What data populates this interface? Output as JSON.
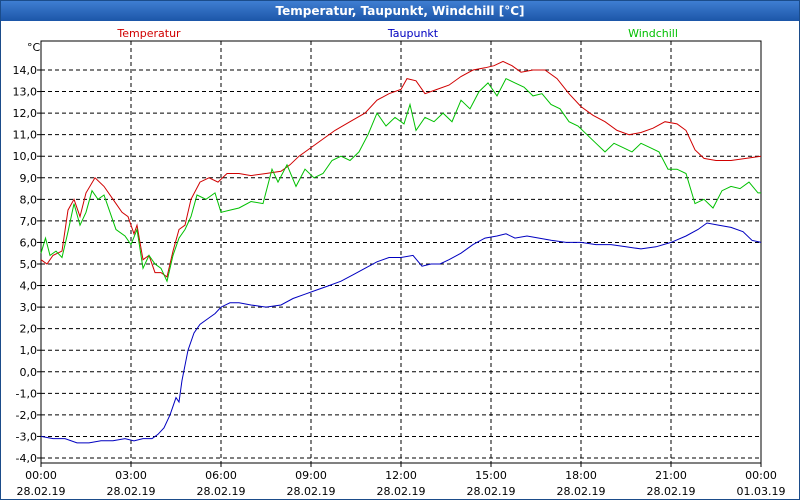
{
  "window": {
    "title": "Temperatur, Taupunkt, Windchill [°C]"
  },
  "chart_data": {
    "type": "line",
    "unit_label": "°C",
    "grid": true,
    "legend_placement": "top",
    "ylim": [
      -4.0,
      15.0
    ],
    "y_ticks": [
      "14,0",
      "13,0",
      "12,0",
      "11,0",
      "10,0",
      "9,0",
      "8,0",
      "7,0",
      "6,0",
      "5,0",
      "4,0",
      "3,0",
      "2,0",
      "1,0",
      "0,0",
      "-1,0",
      "-2,0",
      "-3,0",
      "-4,0"
    ],
    "x_ticks": [
      {
        "time": "00:00",
        "date": "28.02.19"
      },
      {
        "time": "03:00",
        "date": "28.02.19"
      },
      {
        "time": "06:00",
        "date": "28.02.19"
      },
      {
        "time": "09:00",
        "date": "28.02.19"
      },
      {
        "time": "12:00",
        "date": "28.02.19"
      },
      {
        "time": "15:00",
        "date": "28.02.19"
      },
      {
        "time": "18:00",
        "date": "28.02.19"
      },
      {
        "time": "21:00",
        "date": "28.02.19"
      },
      {
        "time": "00:00",
        "date": "01.03.19"
      }
    ],
    "x_range_hours": [
      0,
      24
    ],
    "series": [
      {
        "name": "Temperatur",
        "color": "#d00000",
        "points": [
          [
            0.0,
            5.2
          ],
          [
            0.2,
            5.0
          ],
          [
            0.4,
            5.4
          ],
          [
            0.7,
            5.6
          ],
          [
            0.9,
            7.5
          ],
          [
            1.1,
            8.0
          ],
          [
            1.3,
            7.2
          ],
          [
            1.5,
            8.3
          ],
          [
            1.8,
            9.0
          ],
          [
            2.1,
            8.6
          ],
          [
            2.4,
            8.0
          ],
          [
            2.7,
            7.4
          ],
          [
            2.9,
            7.2
          ],
          [
            3.1,
            6.4
          ],
          [
            3.2,
            6.8
          ],
          [
            3.4,
            5.2
          ],
          [
            3.6,
            5.4
          ],
          [
            3.8,
            4.6
          ],
          [
            4.0,
            4.6
          ],
          [
            4.2,
            4.4
          ],
          [
            4.4,
            5.6
          ],
          [
            4.6,
            6.6
          ],
          [
            4.8,
            6.8
          ],
          [
            5.0,
            8.0
          ],
          [
            5.3,
            8.8
          ],
          [
            5.6,
            9.0
          ],
          [
            5.9,
            8.8
          ],
          [
            6.2,
            9.2
          ],
          [
            6.6,
            9.2
          ],
          [
            7.0,
            9.1
          ],
          [
            7.5,
            9.2
          ],
          [
            8.0,
            9.3
          ],
          [
            8.3,
            9.6
          ],
          [
            8.6,
            10.0
          ],
          [
            9.0,
            10.4
          ],
          [
            9.4,
            10.8
          ],
          [
            9.8,
            11.2
          ],
          [
            10.3,
            11.6
          ],
          [
            10.8,
            12.0
          ],
          [
            11.2,
            12.6
          ],
          [
            11.6,
            12.9
          ],
          [
            12.0,
            13.1
          ],
          [
            12.2,
            13.6
          ],
          [
            12.5,
            13.5
          ],
          [
            12.8,
            12.9
          ],
          [
            13.2,
            13.1
          ],
          [
            13.6,
            13.3
          ],
          [
            14.0,
            13.7
          ],
          [
            14.4,
            14.0
          ],
          [
            14.8,
            14.1
          ],
          [
            15.1,
            14.2
          ],
          [
            15.4,
            14.4
          ],
          [
            15.7,
            14.2
          ],
          [
            16.0,
            13.9
          ],
          [
            16.4,
            14.0
          ],
          [
            16.8,
            14.0
          ],
          [
            17.2,
            13.6
          ],
          [
            17.6,
            12.9
          ],
          [
            18.0,
            12.3
          ],
          [
            18.4,
            11.9
          ],
          [
            18.8,
            11.6
          ],
          [
            19.2,
            11.2
          ],
          [
            19.6,
            11.0
          ],
          [
            20.0,
            11.1
          ],
          [
            20.4,
            11.3
          ],
          [
            20.8,
            11.6
          ],
          [
            21.2,
            11.5
          ],
          [
            21.5,
            11.2
          ],
          [
            21.8,
            10.3
          ],
          [
            22.1,
            9.9
          ],
          [
            22.5,
            9.8
          ],
          [
            23.0,
            9.8
          ],
          [
            23.5,
            9.9
          ],
          [
            24.0,
            10.0
          ]
        ]
      },
      {
        "name": "Taupunkt",
        "color": "#0000c0",
        "points": [
          [
            0.0,
            -3.0
          ],
          [
            0.4,
            -3.1
          ],
          [
            0.8,
            -3.1
          ],
          [
            1.2,
            -3.3
          ],
          [
            1.6,
            -3.3
          ],
          [
            2.0,
            -3.2
          ],
          [
            2.4,
            -3.2
          ],
          [
            2.8,
            -3.1
          ],
          [
            3.1,
            -3.2
          ],
          [
            3.4,
            -3.1
          ],
          [
            3.7,
            -3.1
          ],
          [
            3.9,
            -2.9
          ],
          [
            4.1,
            -2.6
          ],
          [
            4.3,
            -2.0
          ],
          [
            4.4,
            -1.6
          ],
          [
            4.5,
            -1.2
          ],
          [
            4.6,
            -1.4
          ],
          [
            4.7,
            -0.4
          ],
          [
            4.8,
            0.3
          ],
          [
            4.9,
            1.0
          ],
          [
            5.1,
            1.8
          ],
          [
            5.3,
            2.2
          ],
          [
            5.6,
            2.5
          ],
          [
            5.8,
            2.7
          ],
          [
            6.0,
            3.0
          ],
          [
            6.3,
            3.2
          ],
          [
            6.6,
            3.2
          ],
          [
            7.0,
            3.1
          ],
          [
            7.5,
            3.0
          ],
          [
            8.0,
            3.1
          ],
          [
            8.4,
            3.4
          ],
          [
            8.8,
            3.6
          ],
          [
            9.2,
            3.8
          ],
          [
            9.6,
            4.0
          ],
          [
            10.0,
            4.2
          ],
          [
            10.4,
            4.5
          ],
          [
            10.8,
            4.8
          ],
          [
            11.2,
            5.1
          ],
          [
            11.6,
            5.3
          ],
          [
            12.0,
            5.3
          ],
          [
            12.4,
            5.4
          ],
          [
            12.7,
            4.9
          ],
          [
            13.0,
            5.0
          ],
          [
            13.3,
            5.0
          ],
          [
            13.6,
            5.2
          ],
          [
            14.0,
            5.5
          ],
          [
            14.4,
            5.9
          ],
          [
            14.8,
            6.2
          ],
          [
            15.2,
            6.3
          ],
          [
            15.5,
            6.4
          ],
          [
            15.8,
            6.2
          ],
          [
            16.2,
            6.3
          ],
          [
            16.6,
            6.2
          ],
          [
            17.0,
            6.1
          ],
          [
            17.5,
            6.0
          ],
          [
            18.0,
            6.0
          ],
          [
            18.5,
            5.9
          ],
          [
            19.0,
            5.9
          ],
          [
            19.5,
            5.8
          ],
          [
            20.0,
            5.7
          ],
          [
            20.5,
            5.8
          ],
          [
            21.0,
            6.0
          ],
          [
            21.5,
            6.3
          ],
          [
            21.9,
            6.6
          ],
          [
            22.2,
            6.9
          ],
          [
            22.6,
            6.8
          ],
          [
            23.0,
            6.7
          ],
          [
            23.4,
            6.5
          ],
          [
            23.7,
            6.1
          ],
          [
            24.0,
            6.0
          ]
        ]
      },
      {
        "name": "Windchill",
        "color": "#00c000",
        "points": [
          [
            0.0,
            5.5
          ],
          [
            0.15,
            6.2
          ],
          [
            0.3,
            5.4
          ],
          [
            0.5,
            5.6
          ],
          [
            0.7,
            5.3
          ],
          [
            0.9,
            6.5
          ],
          [
            1.1,
            7.8
          ],
          [
            1.3,
            6.8
          ],
          [
            1.5,
            7.4
          ],
          [
            1.7,
            8.4
          ],
          [
            1.9,
            8.0
          ],
          [
            2.1,
            8.2
          ],
          [
            2.3,
            7.4
          ],
          [
            2.5,
            6.6
          ],
          [
            2.8,
            6.3
          ],
          [
            3.0,
            5.9
          ],
          [
            3.2,
            6.6
          ],
          [
            3.4,
            4.8
          ],
          [
            3.6,
            5.4
          ],
          [
            3.8,
            5.0
          ],
          [
            4.0,
            4.8
          ],
          [
            4.2,
            4.2
          ],
          [
            4.4,
            5.4
          ],
          [
            4.6,
            6.2
          ],
          [
            4.8,
            6.6
          ],
          [
            5.0,
            7.2
          ],
          [
            5.2,
            8.2
          ],
          [
            5.5,
            8.0
          ],
          [
            5.8,
            8.3
          ],
          [
            6.0,
            7.4
          ],
          [
            6.3,
            7.5
          ],
          [
            6.6,
            7.6
          ],
          [
            7.0,
            7.9
          ],
          [
            7.4,
            7.8
          ],
          [
            7.7,
            9.4
          ],
          [
            7.9,
            8.8
          ],
          [
            8.2,
            9.6
          ],
          [
            8.5,
            8.6
          ],
          [
            8.8,
            9.4
          ],
          [
            9.1,
            9.0
          ],
          [
            9.4,
            9.2
          ],
          [
            9.7,
            9.8
          ],
          [
            10.0,
            10.0
          ],
          [
            10.3,
            9.8
          ],
          [
            10.6,
            10.2
          ],
          [
            10.9,
            11.0
          ],
          [
            11.2,
            12.0
          ],
          [
            11.5,
            11.4
          ],
          [
            11.8,
            11.8
          ],
          [
            12.1,
            11.5
          ],
          [
            12.3,
            12.4
          ],
          [
            12.5,
            11.2
          ],
          [
            12.8,
            11.8
          ],
          [
            13.1,
            11.6
          ],
          [
            13.4,
            12.0
          ],
          [
            13.7,
            11.6
          ],
          [
            14.0,
            12.6
          ],
          [
            14.3,
            12.2
          ],
          [
            14.6,
            13.0
          ],
          [
            14.9,
            13.4
          ],
          [
            15.2,
            12.8
          ],
          [
            15.5,
            13.6
          ],
          [
            15.8,
            13.4
          ],
          [
            16.1,
            13.2
          ],
          [
            16.4,
            12.8
          ],
          [
            16.7,
            12.9
          ],
          [
            17.0,
            12.4
          ],
          [
            17.3,
            12.2
          ],
          [
            17.6,
            11.6
          ],
          [
            17.9,
            11.4
          ],
          [
            18.2,
            11.0
          ],
          [
            18.5,
            10.6
          ],
          [
            18.8,
            10.2
          ],
          [
            19.1,
            10.6
          ],
          [
            19.4,
            10.4
          ],
          [
            19.7,
            10.2
          ],
          [
            20.0,
            10.6
          ],
          [
            20.3,
            10.4
          ],
          [
            20.6,
            10.2
          ],
          [
            20.9,
            9.4
          ],
          [
            21.2,
            9.4
          ],
          [
            21.5,
            9.2
          ],
          [
            21.8,
            7.8
          ],
          [
            22.1,
            8.0
          ],
          [
            22.4,
            7.6
          ],
          [
            22.7,
            8.4
          ],
          [
            23.0,
            8.6
          ],
          [
            23.3,
            8.5
          ],
          [
            23.6,
            8.8
          ],
          [
            23.9,
            8.3
          ],
          [
            24.0,
            8.3
          ]
        ]
      }
    ]
  }
}
